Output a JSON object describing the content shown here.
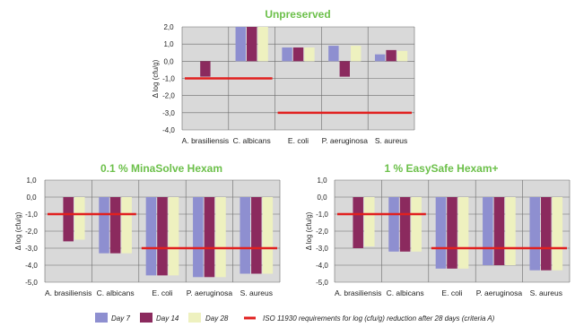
{
  "chart_data": [
    {
      "type": "bar",
      "title": "Unpreserved",
      "ylabel": "Δ log (cfu/g)",
      "ylim": [
        -4.0,
        2.0
      ],
      "yticks": [
        "2,0",
        "1,0",
        "0,0",
        "-1,0",
        "-2,0",
        "-3,0",
        "-4,0"
      ],
      "categories": [
        "A. brasiliensis",
        "C. albicans",
        "E. coli",
        "P. aeruginosa",
        "S. aureus"
      ],
      "series": [
        {
          "name": "Day 7",
          "values": [
            0.0,
            2.0,
            0.8,
            0.9,
            0.4
          ]
        },
        {
          "name": "Day 14",
          "values": [
            -0.9,
            2.0,
            0.8,
            -0.9,
            0.65
          ]
        },
        {
          "name": "Day 28",
          "values": [
            0.0,
            2.0,
            0.8,
            0.9,
            0.6
          ]
        }
      ],
      "reference": [
        {
          "categories": [
            "A. brasiliensis",
            "C. albicans"
          ],
          "value": -1.0
        },
        {
          "categories": [
            "E. coli",
            "P. aeruginosa",
            "S. aureus"
          ],
          "value": -3.0
        }
      ],
      "grid": true
    },
    {
      "type": "bar",
      "title": "0.1 % MinaSolve Hexam",
      "ylabel": "Δ log (cfu/g)",
      "ylim": [
        -5.0,
        1.0
      ],
      "yticks": [
        "1,0",
        "0,0",
        "-1,0",
        "-2,0",
        "-3,0",
        "-4,0",
        "-5,0"
      ],
      "categories": [
        "A. brasiliensis",
        "C. albicans",
        "E. coli",
        "P. aeruginosa",
        "S. aureus"
      ],
      "series": [
        {
          "name": "Day 7",
          "values": [
            0.0,
            -3.3,
            -4.6,
            -4.7,
            -4.5
          ]
        },
        {
          "name": "Day 14",
          "values": [
            -2.6,
            -3.3,
            -4.6,
            -4.7,
            -4.5
          ]
        },
        {
          "name": "Day 28",
          "values": [
            -2.5,
            -3.3,
            -4.6,
            -4.7,
            -4.5
          ]
        }
      ],
      "reference": [
        {
          "categories": [
            "A. brasiliensis",
            "C. albicans"
          ],
          "value": -1.0
        },
        {
          "categories": [
            "E. coli",
            "P. aeruginosa",
            "S. aureus"
          ],
          "value": -3.0
        }
      ],
      "grid": true
    },
    {
      "type": "bar",
      "title": "1 % EasySafe Hexam+",
      "ylabel": "Δ log (cfu/g)",
      "ylim": [
        -5.0,
        1.0
      ],
      "yticks": [
        "1,0",
        "0,0",
        "-1,0",
        "-2,0",
        "-3,0",
        "-4,0",
        "-5,0"
      ],
      "categories": [
        "A. brasiliensis",
        "C. albicans",
        "E. coli",
        "P. aeruginosa",
        "S. aureus"
      ],
      "series": [
        {
          "name": "Day 7",
          "values": [
            0.0,
            -3.2,
            -4.2,
            -4.0,
            -4.3
          ]
        },
        {
          "name": "Day 14",
          "values": [
            -3.0,
            -3.2,
            -4.2,
            -4.0,
            -4.3
          ]
        },
        {
          "name": "Day 28",
          "values": [
            -2.9,
            -3.2,
            -4.2,
            -4.0,
            -4.3
          ]
        }
      ],
      "reference": [
        {
          "categories": [
            "A. brasiliensis",
            "C. albicans"
          ],
          "value": -1.0
        },
        {
          "categories": [
            "E. coli",
            "P. aeruginosa",
            "S. aureus"
          ],
          "value": -3.0
        }
      ],
      "grid": true
    }
  ],
  "legend": {
    "items": [
      "Day 7",
      "Day 14",
      "Day 28"
    ],
    "reference_label": "ISO 11930 requirements for log (cfu/g) reduction after 28 days (criteria A)"
  },
  "colors": {
    "series": [
      "#8e8fd0",
      "#8b2a5e",
      "#eef1bf"
    ],
    "reference": "#e1201f",
    "title": "#6cc04a",
    "plot_bg": "#d9d9d9",
    "grid": "#6b6b6b"
  }
}
